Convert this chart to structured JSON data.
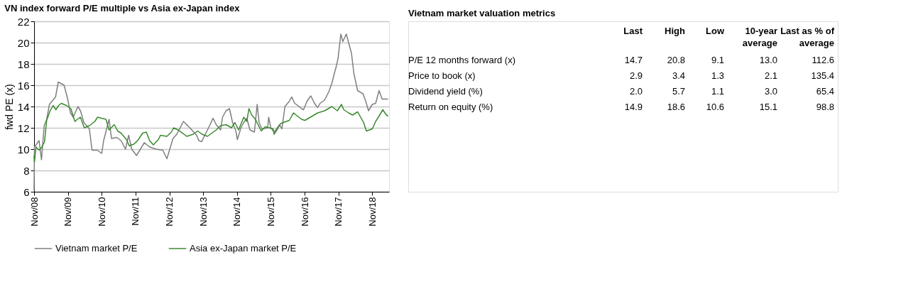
{
  "chart_data": [
    {
      "type": "line",
      "title": "VN index forward P/E multiple vs Asia ex-Japan index",
      "ylabel": "fwd PE (x)",
      "series": [
        {
          "name": "Vietnam market P/E",
          "color": "#7f7f7f",
          "x": [
            "2008-11-01",
            "2008-11-05",
            "2008-12-25",
            "2009-01-20",
            "2009-02-18",
            "2009-03-17",
            "2009-04-16",
            "2009-06-21",
            "2009-07-20",
            "2009-09-21",
            "2009-10-27",
            "2009-11-29",
            "2009-12-28",
            "2010-02-18",
            "2010-03-17",
            "2010-04-23",
            "2010-06-21",
            "2010-07-20",
            "2010-09-14",
            "2010-11-01",
            "2010-11-22",
            "2011-01-20",
            "2011-02-15",
            "2011-04-13",
            "2011-05-29",
            "2011-07-16",
            "2011-08-19",
            "2011-09-21",
            "2011-11-12",
            "2012-02-04",
            "2012-04-02",
            "2012-06-10",
            "2012-08-22",
            "2012-10-05",
            "2012-12-10",
            "2013-01-20",
            "2013-04-02",
            "2013-06-21",
            "2013-08-22",
            "2013-09-14",
            "2013-10-16",
            "2013-11-12",
            "2014-01-09",
            "2014-02-15",
            "2014-03-21",
            "2014-05-08",
            "2014-05-29",
            "2014-07-06",
            "2014-08-12",
            "2014-09-14",
            "2014-10-20",
            "2014-11-05",
            "2014-12-14",
            "2015-01-13",
            "2015-02-15",
            "2015-03-21",
            "2015-05-08",
            "2015-06-07",
            "2015-06-28",
            "2015-07-27",
            "2015-09-28",
            "2015-10-09",
            "2015-11-01",
            "2015-12-07",
            "2016-02-04",
            "2016-02-29",
            "2016-04-02",
            "2016-05-19",
            "2016-06-14",
            "2016-07-16",
            "2016-09-03",
            "2016-09-28",
            "2016-10-20",
            "2016-11-26",
            "2017-01-06",
            "2017-02-15",
            "2017-03-21",
            "2017-04-16",
            "2017-06-03",
            "2017-07-20",
            "2017-08-22",
            "2017-09-17",
            "2017-10-09",
            "2017-10-27",
            "2017-11-26",
            "2017-12-18",
            "2018-01-24",
            "2018-03-21",
            "2018-04-16",
            "2018-05-26",
            "2018-07-23",
            "2018-08-22",
            "2018-09-21",
            "2018-11-01",
            "2018-12-07",
            "2019-01-13",
            "2019-02-15",
            "2019-04-02",
            "2019-04-20"
          ],
          "values": [
            6.1,
            10.2,
            10.8,
            9.0,
            12.2,
            12.8,
            14.2,
            14.9,
            16.3,
            16.0,
            14.8,
            13.4,
            13.0,
            14.0,
            13.6,
            12.5,
            11.9,
            9.9,
            9.9,
            9.6,
            10.8,
            12.8,
            11.0,
            11.1,
            10.8,
            10.0,
            11.3,
            10.0,
            9.4,
            10.6,
            10.2,
            10.0,
            9.9,
            9.1,
            11.0,
            11.4,
            12.6,
            11.9,
            11.3,
            10.8,
            10.7,
            11.2,
            12.2,
            12.9,
            12.3,
            11.8,
            13.0,
            13.6,
            13.8,
            12.5,
            11.7,
            10.9,
            12.0,
            12.5,
            12.9,
            11.8,
            11.6,
            14.2,
            12.5,
            11.9,
            12.0,
            13.0,
            12.0,
            11.6,
            12.3,
            11.9,
            14.0,
            14.5,
            14.9,
            14.3,
            14.0,
            13.8,
            13.7,
            14.5,
            15.0,
            14.3,
            13.9,
            14.3,
            14.6,
            15.4,
            16.2,
            17.1,
            17.8,
            18.5,
            20.8,
            20.1,
            20.8,
            19.0,
            17.1,
            15.5,
            15.2,
            14.5,
            13.6,
            14.2,
            14.3,
            15.5,
            14.7,
            14.7,
            14.7
          ]
        },
        {
          "name": "Asia ex-Japan market P/E",
          "color": "#3a8a2e",
          "x": [
            "2008-11-01",
            "2008-11-05",
            "2008-11-22",
            "2008-12-25",
            "2009-01-24",
            "2009-02-22",
            "2009-03-17",
            "2009-04-23",
            "2009-05-26",
            "2009-06-25",
            "2009-07-24",
            "2009-08-22",
            "2009-10-16",
            "2009-12-03",
            "2010-01-16",
            "2010-02-11",
            "2010-03-17",
            "2010-04-27",
            "2010-06-21",
            "2010-08-19",
            "2010-09-17",
            "2010-11-01",
            "2010-12-17",
            "2011-01-20",
            "2011-03-17",
            "2011-04-23",
            "2011-05-29",
            "2011-07-27",
            "2011-08-26",
            "2011-10-20",
            "2011-12-03",
            "2012-01-16",
            "2012-02-26",
            "2012-04-02",
            "2012-05-12",
            "2012-07-06",
            "2012-07-27",
            "2012-10-05",
            "2012-11-22",
            "2012-12-17",
            "2013-02-04",
            "2013-05-08",
            "2013-07-16",
            "2013-09-03",
            "2013-10-20",
            "2013-12-17",
            "2014-03-21",
            "2014-05-08",
            "2014-07-06",
            "2014-09-03",
            "2014-10-09",
            "2014-11-19",
            "2015-01-13",
            "2015-02-15",
            "2015-03-10",
            "2015-04-09",
            "2015-05-19",
            "2015-07-20",
            "2015-09-03",
            "2015-11-26",
            "2015-12-07",
            "2016-01-13",
            "2016-02-15",
            "2016-05-19",
            "2016-07-02",
            "2016-09-28",
            "2016-11-04",
            "2017-01-02",
            "2017-03-21",
            "2017-06-03",
            "2017-08-22",
            "2017-10-20",
            "2017-12-03",
            "2017-12-28",
            "2018-02-18",
            "2018-04-02",
            "2018-05-26",
            "2018-07-30",
            "2018-08-29",
            "2018-11-01",
            "2018-12-07",
            "2019-01-13",
            "2019-02-22",
            "2019-04-02",
            "2019-04-20"
          ],
          "values": [
            9.4,
            8.8,
            10.2,
            9.9,
            10.2,
            10.7,
            12.7,
            13.6,
            14.1,
            13.7,
            14.1,
            14.3,
            14.1,
            13.8,
            12.6,
            12.8,
            13.0,
            12.0,
            12.2,
            12.6,
            13.0,
            12.9,
            12.8,
            11.8,
            12.3,
            11.7,
            11.5,
            10.9,
            10.3,
            10.5,
            10.9,
            11.5,
            11.6,
            10.8,
            10.4,
            10.9,
            11.3,
            11.2,
            11.6,
            12.0,
            11.8,
            11.2,
            11.4,
            11.7,
            11.4,
            11.2,
            11.8,
            12.2,
            12.3,
            12.0,
            12.5,
            11.8,
            13.0,
            12.6,
            13.8,
            13.2,
            12.8,
            11.7,
            12.1,
            11.9,
            11.4,
            11.9,
            12.4,
            12.7,
            13.4,
            12.8,
            12.7,
            13.0,
            13.4,
            13.6,
            14.0,
            13.6,
            14.2,
            13.7,
            13.4,
            13.2,
            13.5,
            12.5,
            11.7,
            11.9,
            12.6,
            13.1,
            13.7,
            13.2,
            13.1
          ]
        }
      ],
      "xlim": [
        "2008-11-01",
        "2019-05-01"
      ],
      "xticks": [
        {
          "value": "2008-11-01",
          "label": "Nov/08"
        },
        {
          "value": "2009-11-01",
          "label": "Nov/09"
        },
        {
          "value": "2010-11-01",
          "label": "Nov/10"
        },
        {
          "value": "2011-11-01",
          "label": "Nov/11"
        },
        {
          "value": "2012-11-01",
          "label": "Nov/12"
        },
        {
          "value": "2013-11-01",
          "label": "Nov/13"
        },
        {
          "value": "2014-11-01",
          "label": "Nov/14"
        },
        {
          "value": "2015-11-01",
          "label": "Nov/15"
        },
        {
          "value": "2016-11-01",
          "label": "Nov/16"
        },
        {
          "value": "2017-11-01",
          "label": "Nov/17"
        },
        {
          "value": "2018-11-01",
          "label": "Nov/18"
        }
      ],
      "ylim": [
        6,
        22
      ],
      "yticks": [
        6,
        8,
        10,
        12,
        14,
        16,
        18,
        20,
        22
      ],
      "grid": "y",
      "legend": "bottom",
      "line_style": "solid",
      "marker": "none"
    },
    {
      "type": "other",
      "title": "Vietnam market valuation metrics",
      "categories": [
        "Last",
        "High",
        "Low",
        "10-year average",
        "Last as % of average"
      ],
      "y_categories": [
        "P/E 12 months forward (x)",
        "Price to book (x)",
        "Dividend yield (%)",
        "Return on equity (%)"
      ],
      "cell_labels": [
        [
          "14.7",
          "20.8",
          "9.1",
          "13.0",
          "112.6"
        ],
        [
          "2.9",
          "3.4",
          "1.3",
          "2.1",
          "135.4"
        ],
        [
          "2.0",
          "5.7",
          "1.1",
          "3.0",
          "65.4"
        ],
        [
          "14.9",
          "18.6",
          "10.6",
          "15.1",
          "98.8"
        ]
      ]
    }
  ]
}
